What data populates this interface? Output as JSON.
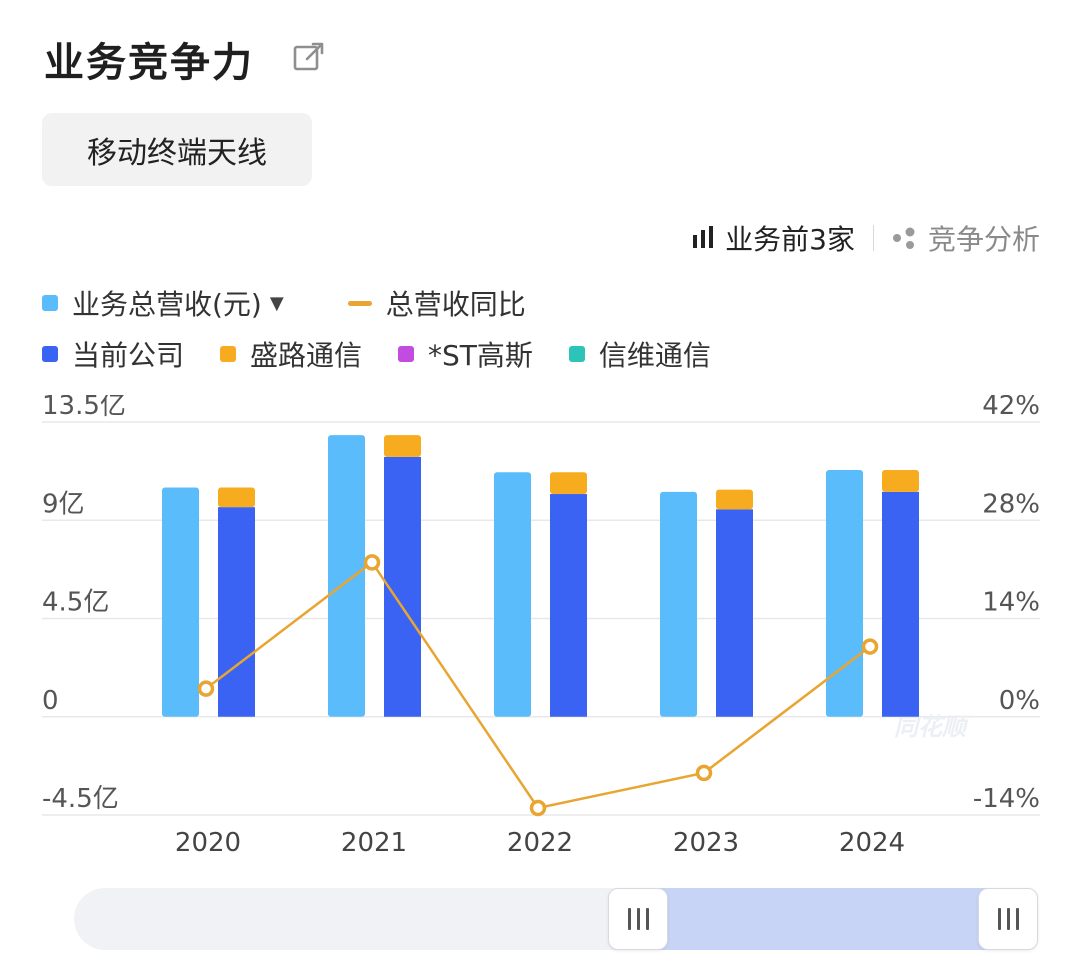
{
  "page": {
    "title": "业务竞争力",
    "business_chip": "移动终端天线",
    "toolbar": {
      "top3_label": "业务前3家",
      "analysis_label": "竞争分析"
    },
    "legend_series": {
      "total_revenue": {
        "label": "业务总营收(元)",
        "color": "#5bbcfb"
      },
      "yoy": {
        "label": "总营收同比",
        "color": "#e8a531"
      }
    },
    "legend_companies": [
      {
        "label": "当前公司",
        "color": "#3a63f3"
      },
      {
        "label": "盛路通信",
        "color": "#f7ab1f"
      },
      {
        "label": "*ST高斯",
        "color": "#c24be0"
      },
      {
        "label": "信维通信",
        "color": "#2cc4b8"
      }
    ],
    "watermark": "同花顺"
  },
  "chart_data": {
    "type": "bar",
    "categories": [
      "2020",
      "2021",
      "2022",
      "2023",
      "2024"
    ],
    "left_axis": {
      "ticks": [
        "13.5亿",
        "9亿",
        "4.5亿",
        "0",
        "-4.5亿"
      ],
      "ylim": [
        -4.5,
        13.5
      ],
      "unit": "亿"
    },
    "right_axis": {
      "ticks": [
        "42%",
        "28%",
        "14%",
        "0%",
        "-14%"
      ],
      "ylim": [
        -14,
        42
      ],
      "unit": "%"
    },
    "series": [
      {
        "name": "业务总营收(元)",
        "kind": "bar",
        "color": "#5bbcfb",
        "values": [
          10.5,
          12.9,
          11.2,
          10.3,
          11.3
        ]
      },
      {
        "name": "当前公司",
        "kind": "stacked-bar",
        "color": "#3a63f3",
        "values": [
          9.6,
          11.9,
          10.2,
          9.5,
          10.3
        ]
      },
      {
        "name": "盛路通信",
        "kind": "stacked-bar",
        "color": "#f7ab1f",
        "values": [
          0.9,
          1.0,
          1.0,
          0.9,
          1.0
        ]
      },
      {
        "name": "总营收同比",
        "kind": "line",
        "axis": "right",
        "color": "#e8a531",
        "values": [
          4,
          22,
          -13,
          -8,
          10
        ]
      }
    ],
    "grid": true,
    "legend": "top-left"
  }
}
